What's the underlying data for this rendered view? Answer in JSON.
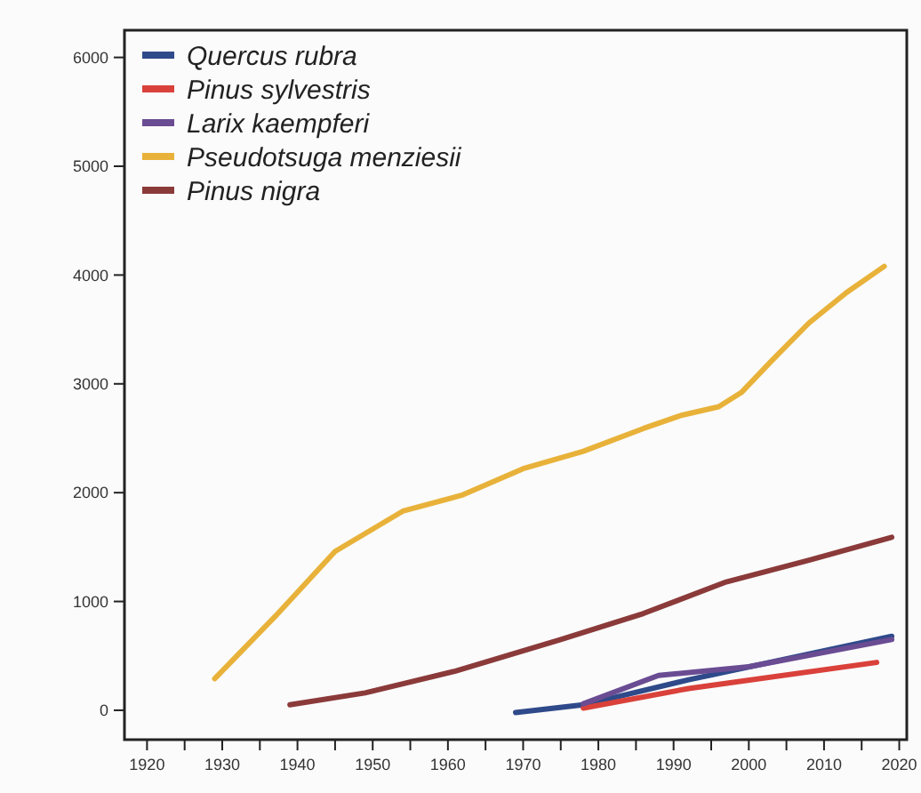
{
  "chart_data": {
    "type": "line",
    "legend": "top left",
    "grid": false,
    "line_style": "solid",
    "marker": "none",
    "xlim": [
      1917,
      2021
    ],
    "ylim": [
      -270,
      6250
    ],
    "xticks": [
      1920,
      {
        "value": 1925,
        "label": null
      },
      1930,
      {
        "value": 1935,
        "label": null
      },
      1940,
      {
        "value": 1945,
        "label": null
      },
      1950,
      {
        "value": 1955,
        "label": null
      },
      1960,
      {
        "value": 1965,
        "label": null
      },
      1970,
      {
        "value": 1975,
        "label": null
      },
      1980,
      {
        "value": 1985,
        "label": null
      },
      1990,
      {
        "value": 1995,
        "label": null
      },
      2000,
      {
        "value": 2005,
        "label": null
      },
      2010,
      {
        "value": 2015,
        "label": null
      },
      2020
    ],
    "yticks": [
      0,
      1000,
      2000,
      3000,
      4000,
      5000,
      6000
    ],
    "series": [
      {
        "name": "Quercus rubra",
        "color": "#2f4a8a",
        "x": [
          1969,
          1978,
          1992,
          2019
        ],
        "values": [
          -20,
          50,
          280,
          680
        ]
      },
      {
        "name": "Pinus sylvestris",
        "color": "#d9413a",
        "x": [
          1978,
          1992,
          2017
        ],
        "values": [
          20,
          200,
          440
        ]
      },
      {
        "name": "Larix kaempferi",
        "color": "#6a4c93",
        "x": [
          1978,
          1988,
          2000,
          2019
        ],
        "values": [
          60,
          320,
          400,
          650
        ]
      },
      {
        "name": "Pseudotsuga menziesii",
        "color": "#e8b23a",
        "x": [
          1929,
          1937,
          1945,
          1954,
          1962,
          1970,
          1978,
          1986,
          1991,
          1996,
          1999,
          2003,
          2008,
          2013,
          2018
        ],
        "values": [
          290,
          860,
          1460,
          1830,
          1980,
          2220,
          2380,
          2590,
          2710,
          2790,
          2920,
          3210,
          3560,
          3840,
          4080
        ]
      },
      {
        "name": "Pinus nigra",
        "color": "#8b3a3a",
        "x": [
          1939,
          1949,
          1961,
          1975,
          1986,
          1997,
          2008,
          2019
        ],
        "values": [
          50,
          160,
          360,
          650,
          890,
          1180,
          1380,
          1590
        ]
      }
    ]
  }
}
